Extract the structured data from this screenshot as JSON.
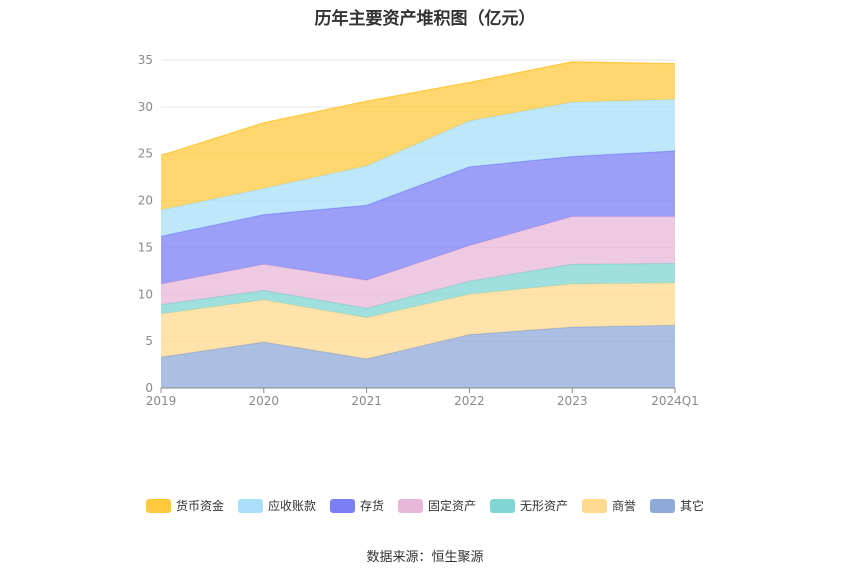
{
  "chart_data": {
    "type": "area",
    "title": "历年主要资产堆积图（亿元）",
    "categories": [
      "2019",
      "2020",
      "2021",
      "2022",
      "2023",
      "2024Q1"
    ],
    "ylim": [
      0,
      35
    ],
    "yticks": [
      0,
      5,
      10,
      15,
      20,
      25,
      30,
      35
    ],
    "grid": true,
    "legend_position": "bottom",
    "stacked": true,
    "series": [
      {
        "name": "其它",
        "color": "#8fa9d9",
        "values": [
          3.3,
          4.9,
          3.1,
          5.7,
          6.5,
          6.7
        ]
      },
      {
        "name": "商誉",
        "color": "#ffd98e",
        "values": [
          4.6,
          4.5,
          4.4,
          4.3,
          4.6,
          4.5
        ]
      },
      {
        "name": "无形资产",
        "color": "#7fd6d3",
        "values": [
          1.0,
          1.0,
          1.0,
          1.4,
          2.1,
          2.1
        ]
      },
      {
        "name": "固定资产",
        "color": "#e8b8d8",
        "values": [
          2.2,
          2.8,
          3.0,
          3.8,
          5.1,
          5.0
        ]
      },
      {
        "name": "存货",
        "color": "#7b7ff5",
        "values": [
          5.1,
          5.3,
          8.0,
          8.4,
          6.4,
          7.0
        ]
      },
      {
        "name": "应收账款",
        "color": "#a9dff8",
        "values": [
          2.8,
          2.8,
          4.2,
          4.9,
          5.8,
          5.5
        ]
      },
      {
        "name": "货币资金",
        "color": "#ffc93d",
        "values": [
          5.8,
          7.0,
          6.9,
          4.1,
          4.3,
          3.8
        ]
      }
    ],
    "legend_order": [
      "货币资金",
      "应收账款",
      "存货",
      "固定资产",
      "无形资产",
      "商誉",
      "其它"
    ]
  },
  "source": "数据来源：恒生聚源"
}
